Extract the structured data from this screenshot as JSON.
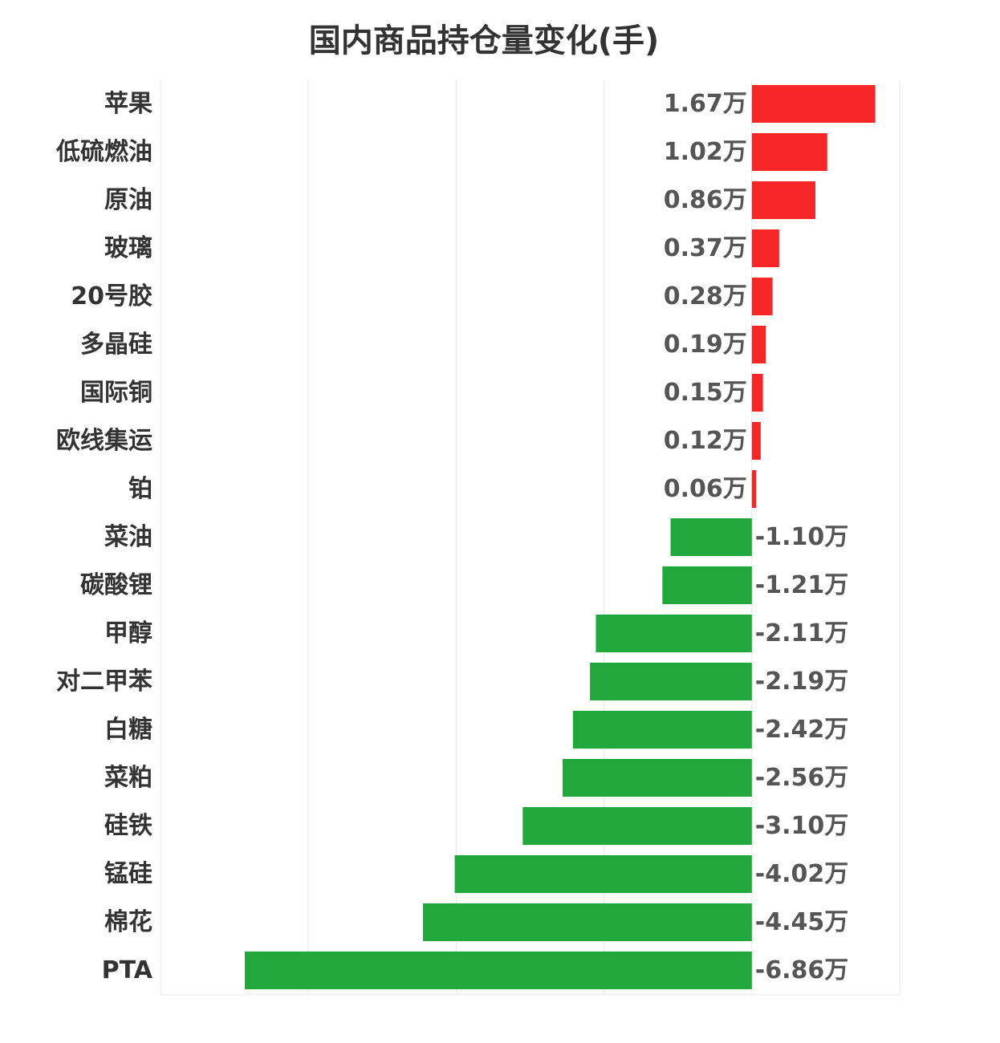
{
  "chart_data": {
    "type": "bar",
    "orientation": "horizontal",
    "title": "国内商品持仓量变化(手)",
    "xlabel": "",
    "ylabel": "",
    "unit_suffix": "万",
    "xlim": [
      -8,
      2
    ],
    "grid": true,
    "categories": [
      "苹果",
      "低硫燃油",
      "原油",
      "玻璃",
      "20号胶",
      "多晶硅",
      "国际铜",
      "欧线集运",
      "铂",
      "菜油",
      "碳酸锂",
      "甲醇",
      "对二甲苯",
      "白糖",
      "菜粕",
      "硅铁",
      "锰硅",
      "棉花",
      "PTA"
    ],
    "values": [
      1.67,
      1.02,
      0.86,
      0.37,
      0.28,
      0.19,
      0.15,
      0.12,
      0.06,
      -1.1,
      -1.21,
      -2.11,
      -2.19,
      -2.42,
      -2.56,
      -3.1,
      -4.02,
      -4.45,
      -6.86
    ],
    "value_labels": [
      "1.67万",
      "1.02万",
      "0.86万",
      "0.37万",
      "0.28万",
      "0.19万",
      "0.15万",
      "0.12万",
      "0.06万",
      "-1.10万",
      "-1.21万",
      "-2.11万",
      "-2.19万",
      "-2.42万",
      "-2.56万",
      "-3.10万",
      "-4.02万",
      "-4.45万",
      "-6.86万"
    ],
    "positive_color": "#f72626",
    "negative_color": "#21a73b"
  }
}
